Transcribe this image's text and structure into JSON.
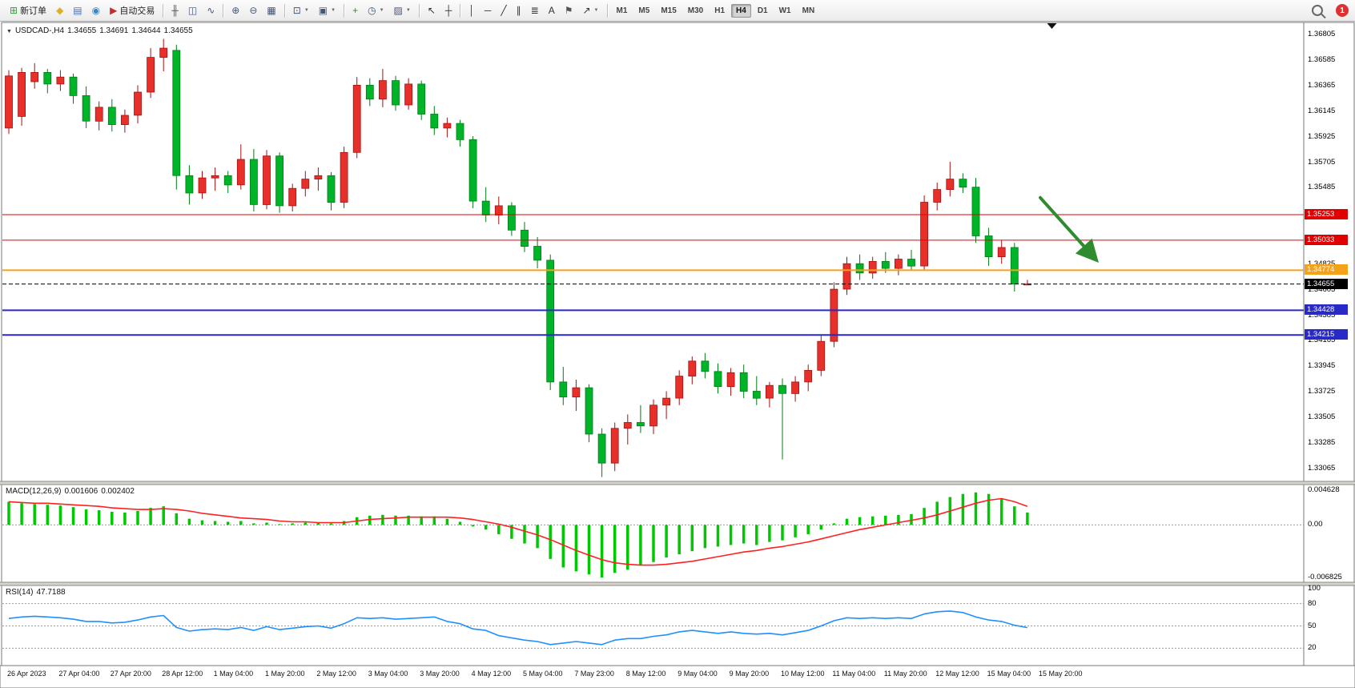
{
  "header": {
    "caret_glyph": "▼",
    "symbol_period": "USDCAD-,H4",
    "open": "1.34655",
    "high": "1.34691",
    "low": "1.34644",
    "close": "1.34655"
  },
  "toolbar": {
    "notification_count": "1",
    "groups": [
      {
        "name": "trade",
        "items": [
          {
            "name": "new-order-button",
            "glyph": "⊞",
            "color": "#3a9a3a",
            "label": "新订单"
          },
          {
            "name": "metaeditor-button",
            "glyph": "◆",
            "color": "#e0b020"
          },
          {
            "name": "market-watch-button",
            "glyph": "▤",
            "color": "#4a6fb5"
          },
          {
            "name": "data-window-button",
            "glyph": "◉",
            "color": "#3588c8"
          },
          {
            "name": "autotrading-button",
            "glyph": "▶",
            "color": "#c03030",
            "label": "自动交易"
          }
        ]
      },
      {
        "name": "chart-types",
        "items": [
          {
            "name": "bar-chart-button",
            "glyph": "╫",
            "color": "#445577"
          },
          {
            "name": "candlestick-chart-button",
            "glyph": "◫",
            "color": "#445577"
          },
          {
            "name": "line-chart-button",
            "glyph": "∿",
            "color": "#445577"
          }
        ]
      },
      {
        "name": "zoom",
        "items": [
          {
            "name": "zoom-in-button",
            "glyph": "⊕",
            "color": "#445577"
          },
          {
            "name": "zoom-out-button",
            "glyph": "⊖",
            "color": "#445577"
          },
          {
            "name": "tile-windows-button",
            "glyph": "▦",
            "color": "#445577"
          }
        ]
      },
      {
        "name": "windows",
        "items": [
          {
            "name": "new-chart-button",
            "glyph": "⊡",
            "color": "#445577",
            "dropdown": true
          },
          {
            "name": "profiles-button",
            "glyph": "▣",
            "color": "#445577",
            "dropdown": true
          }
        ]
      },
      {
        "name": "chart-tools",
        "items": [
          {
            "name": "indicators-button",
            "glyph": "+",
            "color": "#1a9a1a"
          },
          {
            "name": "periods-button",
            "glyph": "◷",
            "color": "#445577",
            "dropdown": true
          },
          {
            "name": "templates-button",
            "glyph": "▨",
            "color": "#445577",
            "dropdown": true
          }
        ]
      },
      {
        "name": "cursor",
        "items": [
          {
            "name": "cursor-button",
            "glyph": "↖",
            "color": "#333333"
          },
          {
            "name": "crosshair-button",
            "glyph": "┼",
            "color": "#333333"
          }
        ]
      },
      {
        "name": "drawing",
        "items": [
          {
            "name": "vertical-line-button",
            "glyph": "│",
            "color": "#333333"
          },
          {
            "name": "horizontal-line-button",
            "glyph": "─",
            "color": "#333333"
          },
          {
            "name": "trendline-button",
            "glyph": "╱",
            "color": "#333333"
          },
          {
            "name": "channel-button",
            "glyph": "∥",
            "color": "#333333"
          },
          {
            "name": "fibonacci-button",
            "glyph": "≣",
            "color": "#333333"
          },
          {
            "name": "text-button",
            "glyph": "A",
            "color": "#333333"
          },
          {
            "name": "text-label-button",
            "glyph": "⚑",
            "color": "#555555"
          },
          {
            "name": "arrows-button",
            "glyph": "↗",
            "color": "#333333",
            "dropdown": true
          }
        ]
      }
    ],
    "timeframes": [
      {
        "label": "M1"
      },
      {
        "label": "M5"
      },
      {
        "label": "M15"
      },
      {
        "label": "M30"
      },
      {
        "label": "H1"
      },
      {
        "label": "H4",
        "active": true
      },
      {
        "label": "D1"
      },
      {
        "label": "W1"
      },
      {
        "label": "MN"
      }
    ]
  },
  "price_axis": {
    "labels": [
      "1.36805",
      "1.36585",
      "1.36365",
      "1.36145",
      "1.35925",
      "1.35705",
      "1.35485",
      "1.35265",
      "1.35045",
      "1.34825",
      "1.34605",
      "1.34385",
      "1.34165",
      "1.33945",
      "1.33725",
      "1.33505",
      "1.33285",
      "1.33065"
    ]
  },
  "lines": [
    {
      "name": "resistance-line-1",
      "price": 1.35253,
      "label": "1.35253",
      "color": "#e00000",
      "width": 1,
      "dash": false
    },
    {
      "name": "resistance-line-2",
      "price": 1.35033,
      "label": "1.35033",
      "color": "#e00000",
      "width": 1,
      "dash": false
    },
    {
      "name": "key-level-line",
      "price": 1.34774,
      "label": "1.34774",
      "color": "#f5a21b",
      "width": 2,
      "dash": false
    },
    {
      "name": "current-price-line",
      "price": 1.34655,
      "label": "1.34655",
      "color": "#000000",
      "width": 1,
      "dash": true
    },
    {
      "name": "support-line-1",
      "price": 1.34428,
      "label": "1.34428",
      "color": "#2929c8",
      "width": 2,
      "dash": false
    },
    {
      "name": "support-line-2",
      "price": 1.34215,
      "label": "1.34215",
      "color": "#2929c8",
      "width": 2,
      "dash": false
    }
  ],
  "chart_data": {
    "type": "candlestick",
    "symbol": "USDCAD-",
    "period": "H4",
    "up_color": "#e8302a",
    "up_stroke": "#a81010",
    "down_color": "#00b42a",
    "down_stroke": "#007d14",
    "ohlc": [
      [
        1.36,
        1.365,
        1.3595,
        1.3645
      ],
      [
        1.361,
        1.3652,
        1.3602,
        1.3648
      ],
      [
        1.364,
        1.3656,
        1.3634,
        1.3648
      ],
      [
        1.3648,
        1.3651,
        1.363,
        1.3638
      ],
      [
        1.3638,
        1.365,
        1.3632,
        1.3644
      ],
      [
        1.3644,
        1.3647,
        1.3621,
        1.3628
      ],
      [
        1.3628,
        1.3636,
        1.36,
        1.3606
      ],
      [
        1.3606,
        1.3623,
        1.3598,
        1.3618
      ],
      [
        1.3618,
        1.3625,
        1.3597,
        1.3603
      ],
      [
        1.3603,
        1.3616,
        1.3596,
        1.3611
      ],
      [
        1.3611,
        1.3637,
        1.3604,
        1.3631
      ],
      [
        1.3631,
        1.3669,
        1.3626,
        1.3661
      ],
      [
        1.3661,
        1.3677,
        1.3649,
        1.3669
      ],
      [
        1.3667,
        1.3672,
        1.3547,
        1.3559
      ],
      [
        1.3559,
        1.3568,
        1.3534,
        1.3544
      ],
      [
        1.3544,
        1.3563,
        1.3539,
        1.3557
      ],
      [
        1.3557,
        1.3566,
        1.3546,
        1.3559
      ],
      [
        1.3559,
        1.3563,
        1.3544,
        1.3551
      ],
      [
        1.3551,
        1.3586,
        1.3547,
        1.3573
      ],
      [
        1.3573,
        1.3582,
        1.3528,
        1.3534
      ],
      [
        1.3534,
        1.3581,
        1.353,
        1.3576
      ],
      [
        1.3576,
        1.3579,
        1.3527,
        1.3533
      ],
      [
        1.3533,
        1.3552,
        1.3528,
        1.3548
      ],
      [
        1.3548,
        1.3563,
        1.3541,
        1.3556
      ],
      [
        1.3556,
        1.3566,
        1.3546,
        1.3559
      ],
      [
        1.3559,
        1.3562,
        1.3529,
        1.3536
      ],
      [
        1.3536,
        1.3584,
        1.3531,
        1.3579
      ],
      [
        1.3579,
        1.3644,
        1.3574,
        1.3637
      ],
      [
        1.3637,
        1.3643,
        1.3619,
        1.3625
      ],
      [
        1.3625,
        1.3651,
        1.3618,
        1.3641
      ],
      [
        1.3641,
        1.3645,
        1.3615,
        1.362
      ],
      [
        1.362,
        1.3643,
        1.3616,
        1.3638
      ],
      [
        1.3638,
        1.3641,
        1.3607,
        1.3612
      ],
      [
        1.3612,
        1.3619,
        1.3594,
        1.36
      ],
      [
        1.36,
        1.3609,
        1.3592,
        1.3604
      ],
      [
        1.3604,
        1.3607,
        1.3584,
        1.359
      ],
      [
        1.359,
        1.3593,
        1.3531,
        1.3537
      ],
      [
        1.3537,
        1.3549,
        1.3519,
        1.3525
      ],
      [
        1.3525,
        1.3541,
        1.3517,
        1.3533
      ],
      [
        1.3533,
        1.3536,
        1.3507,
        1.3512
      ],
      [
        1.3512,
        1.3519,
        1.3493,
        1.3498
      ],
      [
        1.3498,
        1.3506,
        1.3479,
        1.3486
      ],
      [
        1.3486,
        1.3491,
        1.3374,
        1.3381
      ],
      [
        1.3381,
        1.3394,
        1.3361,
        1.3368
      ],
      [
        1.3368,
        1.3383,
        1.3356,
        1.3376
      ],
      [
        1.3376,
        1.3379,
        1.3329,
        1.3336
      ],
      [
        1.3336,
        1.3341,
        1.3299,
        1.3311
      ],
      [
        1.3311,
        1.3346,
        1.3304,
        1.3341
      ],
      [
        1.3341,
        1.3353,
        1.3327,
        1.3346
      ],
      [
        1.3346,
        1.3361,
        1.3337,
        1.3343
      ],
      [
        1.3343,
        1.3366,
        1.3336,
        1.3361
      ],
      [
        1.3361,
        1.3373,
        1.3349,
        1.3367
      ],
      [
        1.3367,
        1.3391,
        1.3361,
        1.3386
      ],
      [
        1.3386,
        1.3403,
        1.3379,
        1.3399
      ],
      [
        1.3399,
        1.3406,
        1.3384,
        1.339
      ],
      [
        1.339,
        1.3397,
        1.3371,
        1.3377
      ],
      [
        1.3377,
        1.3393,
        1.3369,
        1.3389
      ],
      [
        1.3389,
        1.3396,
        1.3367,
        1.3373
      ],
      [
        1.3373,
        1.3386,
        1.3361,
        1.3367
      ],
      [
        1.3367,
        1.3381,
        1.3359,
        1.3378
      ],
      [
        1.3378,
        1.3384,
        1.3314,
        1.3371
      ],
      [
        1.3371,
        1.3386,
        1.3364,
        1.3381
      ],
      [
        1.3381,
        1.3396,
        1.3373,
        1.3391
      ],
      [
        1.3391,
        1.3421,
        1.3386,
        1.3416
      ],
      [
        1.3416,
        1.3467,
        1.3411,
        1.3461
      ],
      [
        1.3461,
        1.3489,
        1.3456,
        1.3483
      ],
      [
        1.3483,
        1.3491,
        1.3469,
        1.3475
      ],
      [
        1.3475,
        1.3489,
        1.347,
        1.3485
      ],
      [
        1.3485,
        1.3493,
        1.3475,
        1.3479
      ],
      [
        1.3479,
        1.3491,
        1.3473,
        1.3487
      ],
      [
        1.3487,
        1.3495,
        1.3477,
        1.3481
      ],
      [
        1.3481,
        1.3542,
        1.3477,
        1.3536
      ],
      [
        1.3536,
        1.3553,
        1.3529,
        1.3547
      ],
      [
        1.3547,
        1.3571,
        1.3541,
        1.3556
      ],
      [
        1.3556,
        1.3561,
        1.3544,
        1.3549
      ],
      [
        1.3549,
        1.3557,
        1.3501,
        1.3507
      ],
      [
        1.3507,
        1.3514,
        1.3481,
        1.3489
      ],
      [
        1.3489,
        1.3503,
        1.3483,
        1.3497
      ],
      [
        1.3497,
        1.3501,
        1.3459,
        1.34655
      ],
      [
        1.34655,
        1.34691,
        1.34644,
        1.34655
      ]
    ]
  },
  "macd": {
    "title": "MACD(12,26,9)",
    "value_main": "0.001606",
    "value_signal": "0.002402",
    "axis_labels": [
      "0.004628",
      "0.00",
      "-0.006825"
    ],
    "scale_max": 0.0048,
    "scale_min": -0.007,
    "histogram_color": "#00c800",
    "signal_color": "#ff2020",
    "histogram": [
      0.003,
      0.0028,
      0.0027,
      0.0026,
      0.0025,
      0.0023,
      0.002,
      0.0019,
      0.0017,
      0.0016,
      0.0018,
      0.0022,
      0.0024,
      0.0015,
      0.0008,
      0.0006,
      0.0005,
      0.0004,
      0.0005,
      0.0002,
      0.0003,
      0.0001,
      0.0002,
      0.0003,
      0.0003,
      0.0002,
      0.0005,
      0.001,
      0.0012,
      0.0013,
      0.0012,
      0.0012,
      0.0011,
      0.0011,
      0.0008,
      0.0004,
      -0.0002,
      -0.0006,
      -0.0012,
      -0.0018,
      -0.0024,
      -0.003,
      -0.0044,
      -0.0055,
      -0.006,
      -0.0064,
      -0.0068,
      -0.0062,
      -0.0058,
      -0.0052,
      -0.0048,
      -0.0042,
      -0.0038,
      -0.0034,
      -0.003,
      -0.0028,
      -0.0026,
      -0.0024,
      -0.0026,
      -0.0022,
      -0.002,
      -0.0016,
      -0.0012,
      -0.0006,
      0.0002,
      0.0008,
      0.001,
      0.0011,
      0.0012,
      0.0013,
      0.0014,
      0.0022,
      0.003,
      0.0036,
      0.004,
      0.0042,
      0.004,
      0.0034,
      0.0024,
      0.0016
    ],
    "signal": [
      0.003,
      0.0029,
      0.0028,
      0.0028,
      0.0027,
      0.0026,
      0.0025,
      0.0024,
      0.0022,
      0.0021,
      0.002,
      0.002,
      0.0021,
      0.002,
      0.0018,
      0.0015,
      0.0013,
      0.0011,
      0.0009,
      0.0008,
      0.0007,
      0.0005,
      0.0004,
      0.0004,
      0.0003,
      0.0003,
      0.0003,
      0.0005,
      0.0007,
      0.0008,
      0.0009,
      0.001,
      0.001,
      0.001,
      0.001,
      0.0009,
      0.0007,
      0.0004,
      0.0001,
      -0.0003,
      -0.0008,
      -0.0013,
      -0.0019,
      -0.0026,
      -0.0033,
      -0.0039,
      -0.0045,
      -0.0049,
      -0.0051,
      -0.0052,
      -0.0052,
      -0.0051,
      -0.0049,
      -0.0047,
      -0.0044,
      -0.0041,
      -0.0038,
      -0.0035,
      -0.0033,
      -0.003,
      -0.0028,
      -0.0025,
      -0.0022,
      -0.0018,
      -0.0014,
      -0.001,
      -0.0006,
      -0.0003,
      0.0,
      0.0003,
      0.0006,
      0.0009,
      0.0013,
      0.0018,
      0.0023,
      0.0028,
      0.0032,
      0.0034,
      0.003,
      0.0024
    ]
  },
  "rsi": {
    "title": "RSI(14)",
    "value": "47.7188",
    "line_color": "#1e90ff",
    "levels": [
      80,
      50,
      20
    ],
    "axis_labels": [
      "100",
      "80",
      "50",
      "20"
    ],
    "values": [
      60,
      62,
      63,
      62,
      61,
      59,
      56,
      56,
      54,
      55,
      58,
      62,
      64,
      48,
      43,
      45,
      46,
      45,
      48,
      44,
      49,
      45,
      47,
      49,
      50,
      47,
      53,
      61,
      60,
      61,
      59,
      60,
      61,
      62,
      56,
      53,
      46,
      44,
      37,
      34,
      31,
      29,
      25,
      27,
      29,
      27,
      25,
      31,
      33,
      33,
      36,
      38,
      42,
      44,
      42,
      40,
      42,
      40,
      39,
      40,
      38,
      41,
      44,
      50,
      57,
      61,
      60,
      61,
      60,
      61,
      60,
      66,
      69,
      70,
      68,
      62,
      58,
      56,
      51,
      47.7
    ]
  },
  "time_axis": {
    "label_every_n_bars": 4,
    "labels": [
      "26 Apr 2023",
      "27 Apr 04:00",
      "27 Apr 20:00",
      "28 Apr 12:00",
      "1 May 04:00",
      "1 May 20:00",
      "2 May 12:00",
      "3 May 04:00",
      "3 May 20:00",
      "4 May 12:00",
      "5 May 04:00",
      "7 May 23:00",
      "8 May 12:00",
      "9 May 04:00",
      "9 May 20:00",
      "10 May 12:00",
      "11 May 04:00",
      "11 May 20:00",
      "12 May 12:00",
      "15 May 04:00",
      "15 May 20:00"
    ]
  },
  "annotations": {
    "arrow": {
      "direction": "down-right",
      "color": "#2e8b2e",
      "from": {
        "bar": 80.0,
        "price": 1.354
      },
      "to": {
        "bar": 84.2,
        "price": 1.3488
      }
    },
    "shift_marker_bar": 80.9
  }
}
